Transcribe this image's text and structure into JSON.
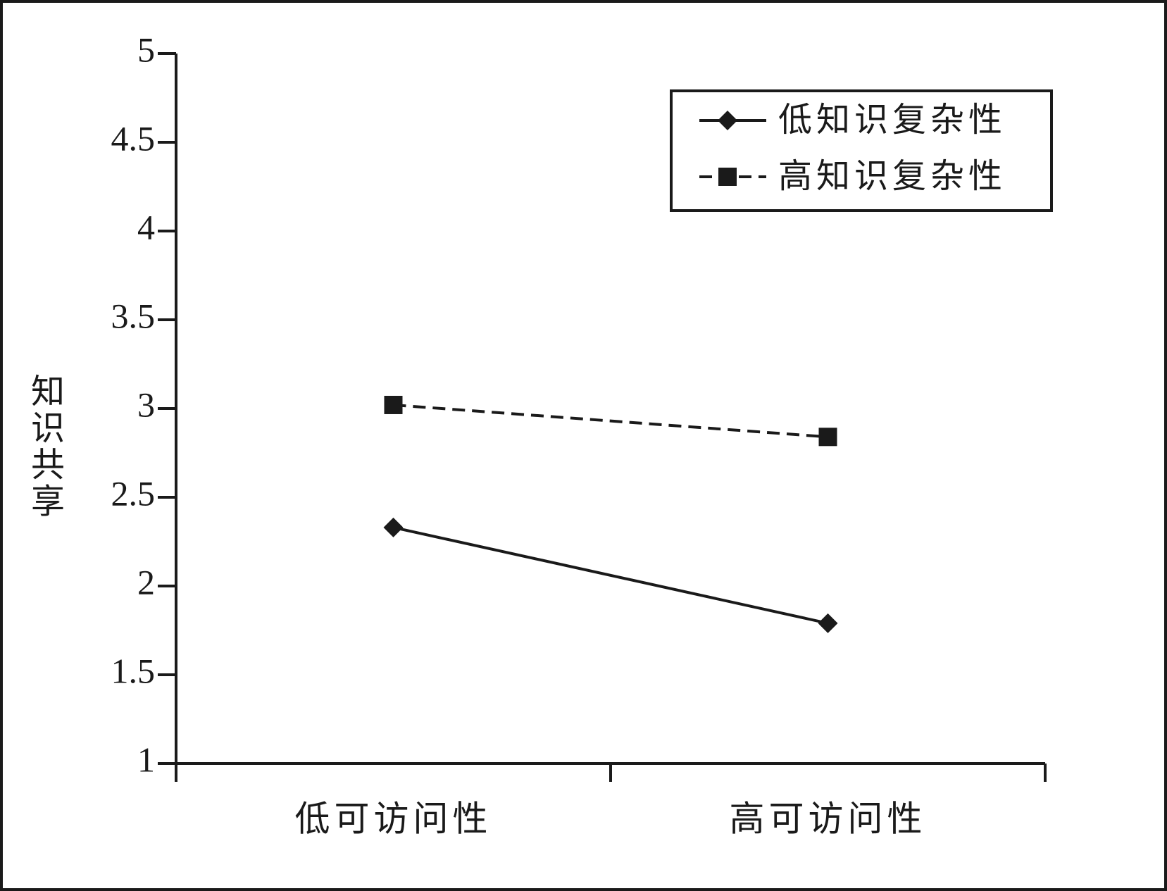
{
  "chart_data": {
    "type": "line",
    "y_label": "知识共享",
    "categories": [
      "低可访问性",
      "高可访问性"
    ],
    "series": [
      {
        "name": "低知识复杂性",
        "color": "#1a1a1a",
        "style": "solid",
        "marker": "diamond",
        "values": [
          2.33,
          1.79
        ]
      },
      {
        "name": "高知识复杂性",
        "color": "#1a1a1a",
        "style": "dashed",
        "marker": "square",
        "values": [
          3.02,
          2.84
        ]
      }
    ],
    "ylim": [
      1,
      5
    ],
    "yticks": [
      1,
      1.5,
      2,
      2.5,
      3,
      3.5,
      4,
      4.5,
      5
    ],
    "grid": false,
    "legend": "upper right"
  }
}
